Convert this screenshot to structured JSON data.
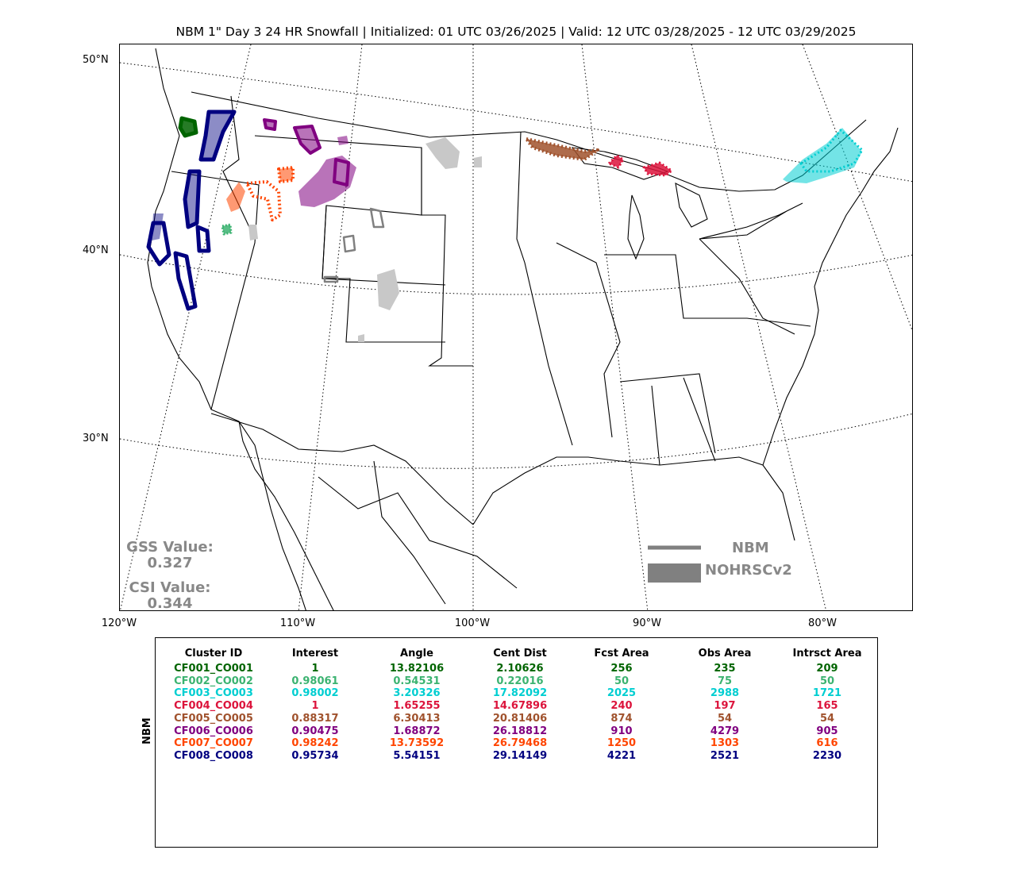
{
  "title": "NBM 1\" Day 3 24 HR Snowfall | Initialized: 01 UTC 03/26/2025 | Valid: 12 UTC 03/28/2025 - 12 UTC 03/29/2025",
  "lat_labels": [
    "50°N",
    "40°N",
    "30°N"
  ],
  "lon_labels": [
    "120°W",
    "110°W",
    "100°W",
    "90°W",
    "80°W"
  ],
  "scores": {
    "gss_label": "GSS Value:",
    "gss_value": "0.327",
    "csi_label": "CSI Value:",
    "csi_value": "0.344"
  },
  "legend": {
    "forecast": "NBM",
    "observed": "NOHRSCv2"
  },
  "colors": {
    "CF001": "#006400",
    "CF002": "#3cb371",
    "CF003": "#00ced1",
    "CF004": "#dc143c",
    "CF005": "#a0522d",
    "CF006": "#800080",
    "CF007": "#ff4500",
    "CF008": "#000080",
    "unmatched": "#808080"
  },
  "table": {
    "side_label": "NBM",
    "headers": [
      "Cluster ID",
      "Interest",
      "Angle",
      "Cent Dist",
      "Fcst Area",
      "Obs Area",
      "Intrsct Area"
    ],
    "rows": [
      {
        "id": "CF001_CO001",
        "interest": "1",
        "angle": "13.82106",
        "cent_dist": "2.10626",
        "fcst_area": "256",
        "obs_area": "235",
        "intrsct_area": "209",
        "color": "#006400"
      },
      {
        "id": "CF002_CO002",
        "interest": "0.98061",
        "angle": "0.54531",
        "cent_dist": "0.22016",
        "fcst_area": "50",
        "obs_area": "75",
        "intrsct_area": "50",
        "color": "#3cb371"
      },
      {
        "id": "CF003_CO003",
        "interest": "0.98002",
        "angle": "3.20326",
        "cent_dist": "17.82092",
        "fcst_area": "2025",
        "obs_area": "2988",
        "intrsct_area": "1721",
        "color": "#00ced1"
      },
      {
        "id": "CF004_CO004",
        "interest": "1",
        "angle": "1.65255",
        "cent_dist": "14.67896",
        "fcst_area": "240",
        "obs_area": "197",
        "intrsct_area": "165",
        "color": "#dc143c"
      },
      {
        "id": "CF005_CO005",
        "interest": "0.88317",
        "angle": "6.30413",
        "cent_dist": "20.81406",
        "fcst_area": "874",
        "obs_area": "54",
        "intrsct_area": "54",
        "color": "#a0522d"
      },
      {
        "id": "CF006_CO006",
        "interest": "0.90475",
        "angle": "1.68872",
        "cent_dist": "26.18812",
        "fcst_area": "910",
        "obs_area": "4279",
        "intrsct_area": "905",
        "color": "#800080"
      },
      {
        "id": "CF007_CO007",
        "interest": "0.98242",
        "angle": "13.73592",
        "cent_dist": "26.79468",
        "fcst_area": "1250",
        "obs_area": "1303",
        "intrsct_area": "616",
        "color": "#ff4500"
      },
      {
        "id": "CF008_CO008",
        "interest": "0.95734",
        "angle": "5.54151",
        "cent_dist": "29.14149",
        "fcst_area": "4221",
        "obs_area": "2521",
        "intrsct_area": "2230",
        "color": "#000080"
      }
    ]
  }
}
